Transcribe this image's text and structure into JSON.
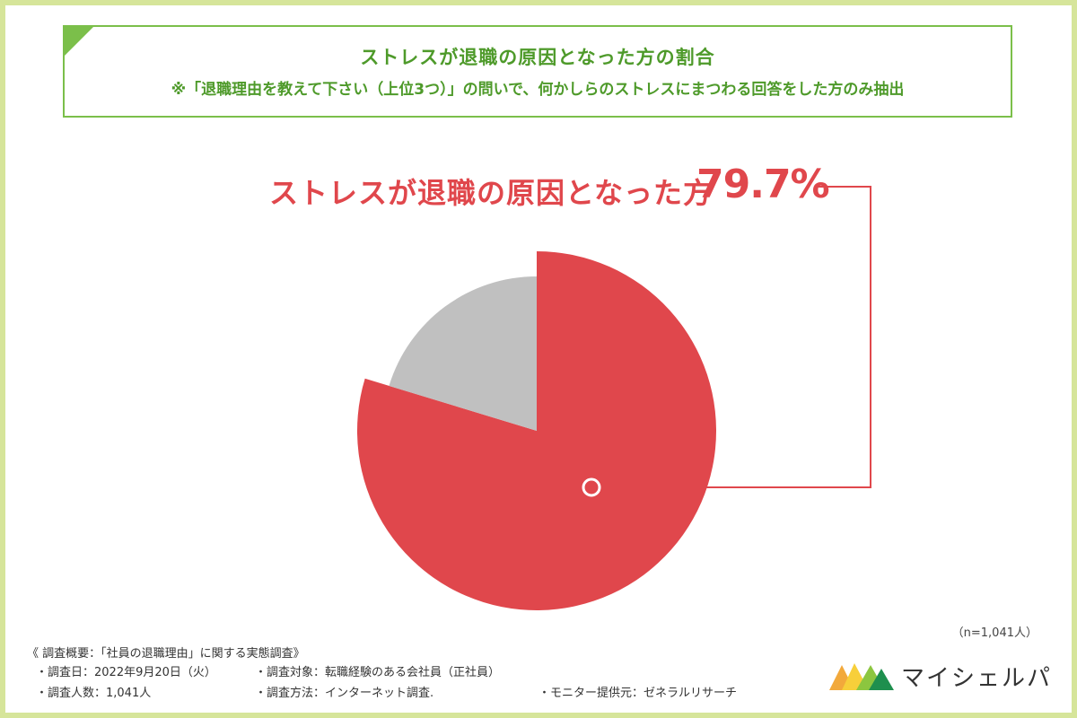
{
  "header": {
    "title": "ストレスが退職の原因となった方の割合",
    "subtitle": "※「退職理由を教えて下さい（上位3つ）」の問いで、何かしらのストレスにまつわる回答をした方のみ抽出"
  },
  "callout": {
    "label": "ストレスが退職の原因となった方",
    "value": "79.7%"
  },
  "chart_data": {
    "type": "pie",
    "title": "ストレスが退職の原因となった方の割合",
    "slices": [
      {
        "label": "ストレスが退職の原因となった方",
        "value": 79.7,
        "color": "#e0474c",
        "exploded": true
      },
      {
        "label": "",
        "value": 20.3,
        "color": "#c0c0c0",
        "exploded": false
      }
    ],
    "annotation": "79.7%",
    "sample_note": "（n=1,041人）"
  },
  "sample": {
    "n_label": "（n=1,041人）"
  },
  "survey": {
    "heading": "《 調査概要：「社員の退職理由」に関する実態調査》",
    "date": "・調査日：2022年9月20日（火）",
    "target": "・調査対象：転職経験のある会社員（正社員）",
    "count": "・調査人数：1,041人",
    "method": "・調査方法：インターネット調査.",
    "provider": "・モニター提供元：ゼネラルリサーチ"
  },
  "logo": {
    "text": "マイシェルパ",
    "icon": "mountains-logo-icon",
    "colors": [
      "#f2a93b",
      "#f7cf3a",
      "#8cc63f",
      "#1e8f4e"
    ]
  },
  "colors": {
    "frame": "#d6e59a",
    "title_border": "#7bbf4a",
    "title_text": "#4e9a2a",
    "accent_red": "#e0474c",
    "gray": "#c0c0c0"
  }
}
